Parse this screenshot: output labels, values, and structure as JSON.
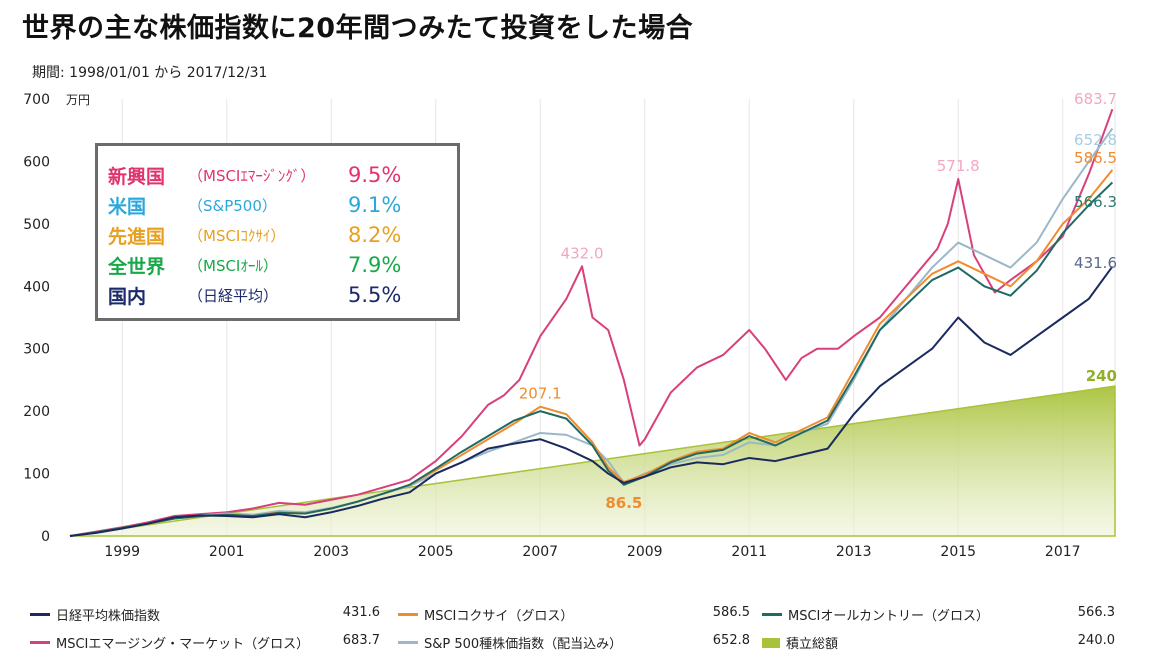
{
  "title": "世界の主な株価指数に20年間つみたて投資をした場合",
  "period": "期間: 1998/01/01 から 2017/12/31",
  "summary_box": [
    {
      "name": "新興国",
      "sub": "（MSCIｴﾏｰｼﾞﾝｸﾞ）",
      "pct": "9.5%",
      "color": "#e0336f"
    },
    {
      "name": "米国",
      "sub": "（S&P500）",
      "pct": "9.1%",
      "color": "#2aa8dc"
    },
    {
      "name": "先進国",
      "sub": "（MSCIｺｸｻｲ）",
      "pct": "8.2%",
      "color": "#e8a020"
    },
    {
      "name": "全世界",
      "sub": "（MSCIｵｰﾙ）",
      "pct": "7.9%",
      "color": "#18a848"
    },
    {
      "name": "国内",
      "sub": "（日経平均）",
      "pct": "5.5%",
      "color": "#1a2a6a"
    }
  ],
  "legend": [
    {
      "label": "日経平均株価指数",
      "value": "431.6",
      "color": "#1b2a5e",
      "type": "line"
    },
    {
      "label": "MSCIコクサイ（グロス）",
      "value": "586.5",
      "color": "#f08c2e",
      "type": "line"
    },
    {
      "label": "MSCIオールカントリー（グロス）",
      "value": "566.3",
      "color": "#1f6b63",
      "type": "line"
    },
    {
      "label": "MSCIエマージング・マーケット（グロス）",
      "value": "683.7",
      "color": "#d83f7c",
      "type": "line"
    },
    {
      "label": "S&P 500種株価指数（配当込み）",
      "value": "652.8",
      "color": "#9ab8c8",
      "type": "line"
    },
    {
      "label": "積立総額",
      "value": "240.0",
      "color": "#a8c23a",
      "type": "area"
    }
  ],
  "chart_data": {
    "type": "line",
    "yunit": "万円",
    "ylim": [
      0,
      700
    ],
    "yticks": [
      0,
      100,
      200,
      300,
      400,
      500,
      600,
      700
    ],
    "xlim": [
      1998,
      2018
    ],
    "xticks": [
      1999,
      2001,
      2003,
      2005,
      2007,
      2009,
      2011,
      2013,
      2015,
      2017
    ],
    "grid": "vertical",
    "series": [
      {
        "name": "積立総額",
        "type": "area",
        "color": "#a8c23a",
        "x": [
          1998,
          2018
        ],
        "values": [
          0,
          240
        ]
      },
      {
        "name": "MSCIエマージング・マーケット（グロス）",
        "color": "#d83f7c",
        "x": [
          1998,
          1998.5,
          1999,
          1999.5,
          2000,
          2000.5,
          2001,
          2001.5,
          2002,
          2002.5,
          2003,
          2003.5,
          2004,
          2004.5,
          2005,
          2005.5,
          2006,
          2006.3,
          2006.6,
          2007,
          2007.5,
          2007.8,
          2008,
          2008.3,
          2008.6,
          2008.9,
          2009,
          2009.5,
          2010,
          2010.5,
          2011,
          2011.3,
          2011.7,
          2012,
          2012.3,
          2012.7,
          2013,
          2013.5,
          2014,
          2014.3,
          2014.6,
          2014.8,
          2015,
          2015.3,
          2015.7,
          2016,
          2016.5,
          2017,
          2017.5,
          2017.95
        ],
        "values": [
          0,
          7,
          14,
          22,
          32,
          35,
          38,
          44,
          53,
          50,
          58,
          66,
          78,
          90,
          120,
          160,
          210,
          225,
          250,
          320,
          380,
          432,
          350,
          330,
          250,
          145,
          155,
          230,
          270,
          290,
          330,
          300,
          250,
          285,
          300,
          300,
          320,
          350,
          400,
          430,
          460,
          500,
          571.8,
          450,
          390,
          410,
          440,
          480,
          580,
          683.7
        ]
      },
      {
        "name": "S&P 500種株価指数（配当込み）",
        "color": "#9ab8c8",
        "x": [
          1998,
          1998.5,
          1999,
          1999.5,
          2000,
          2000.5,
          2001,
          2001.5,
          2002,
          2002.5,
          2003,
          2003.5,
          2004,
          2004.5,
          2005,
          2005.5,
          2006,
          2006.5,
          2007,
          2007.5,
          2008,
          2008.3,
          2008.6,
          2009,
          2009.5,
          2010,
          2010.5,
          2011,
          2011.5,
          2012,
          2012.5,
          2013,
          2013.5,
          2014,
          2014.5,
          2015,
          2015.5,
          2016,
          2016.5,
          2017,
          2017.5,
          2017.95
        ],
        "values": [
          0,
          6,
          13,
          20,
          28,
          33,
          36,
          34,
          40,
          38,
          45,
          55,
          68,
          80,
          100,
          118,
          135,
          150,
          165,
          162,
          145,
          120,
          85,
          100,
          115,
          125,
          130,
          150,
          145,
          165,
          180,
          250,
          330,
          380,
          430,
          470,
          450,
          430,
          470,
          540,
          600,
          652.8
        ]
      },
      {
        "name": "MSCIコクサイ（グロス）",
        "color": "#f08c2e",
        "x": [
          1998,
          1998.5,
          1999,
          1999.5,
          2000,
          2000.5,
          2001,
          2001.5,
          2002,
          2002.5,
          2003,
          2003.5,
          2004,
          2004.5,
          2005,
          2005.5,
          2006,
          2006.5,
          2007,
          2007.5,
          2008,
          2008.3,
          2008.6,
          2009,
          2009.5,
          2010,
          2010.5,
          2011,
          2011.5,
          2012,
          2012.5,
          2013,
          2013.5,
          2014,
          2014.5,
          2015,
          2015.5,
          2016,
          2016.5,
          2017,
          2017.5,
          2017.95
        ],
        "values": [
          0,
          6,
          13,
          20,
          28,
          32,
          34,
          32,
          38,
          36,
          44,
          55,
          68,
          82,
          105,
          130,
          155,
          180,
          207.1,
          195,
          150,
          110,
          86.5,
          98,
          120,
          135,
          140,
          165,
          150,
          170,
          190,
          265,
          340,
          380,
          420,
          440,
          420,
          400,
          440,
          500,
          540,
          586.5
        ]
      },
      {
        "name": "MSCIオールカントリー（グロス）",
        "color": "#1f6b63",
        "x": [
          1998,
          1998.5,
          1999,
          1999.5,
          2000,
          2000.5,
          2001,
          2001.5,
          2002,
          2002.5,
          2003,
          2003.5,
          2004,
          2004.5,
          2005,
          2005.5,
          2006,
          2006.5,
          2007,
          2007.5,
          2008,
          2008.3,
          2008.6,
          2009,
          2009.5,
          2010,
          2010.5,
          2011,
          2011.5,
          2012,
          2012.5,
          2013,
          2013.5,
          2014,
          2014.5,
          2015,
          2015.5,
          2016,
          2016.5,
          2017,
          2017.5,
          2017.95
        ],
        "values": [
          0,
          6,
          13,
          20,
          28,
          32,
          34,
          32,
          37,
          36,
          44,
          55,
          68,
          82,
          108,
          135,
          160,
          185,
          200,
          188,
          145,
          105,
          82,
          95,
          118,
          132,
          138,
          160,
          145,
          165,
          185,
          255,
          330,
          370,
          410,
          430,
          400,
          385,
          425,
          485,
          530,
          566.3
        ]
      },
      {
        "name": "日経平均株価指数",
        "color": "#1b2a5e",
        "x": [
          1998,
          1998.5,
          1999,
          1999.5,
          2000,
          2000.5,
          2001,
          2001.5,
          2002,
          2002.5,
          2003,
          2003.5,
          2004,
          2004.5,
          2005,
          2005.5,
          2006,
          2006.5,
          2007,
          2007.5,
          2008,
          2008.3,
          2008.6,
          2009,
          2009.5,
          2010,
          2010.5,
          2011,
          2011.5,
          2012,
          2012.5,
          2013,
          2013.5,
          2014,
          2014.5,
          2015,
          2015.5,
          2016,
          2016.5,
          2017,
          2017.5,
          2017.95
        ],
        "values": [
          0,
          5,
          12,
          20,
          30,
          33,
          32,
          30,
          35,
          30,
          38,
          48,
          60,
          70,
          100,
          118,
          140,
          148,
          155,
          140,
          120,
          100,
          85,
          95,
          110,
          118,
          115,
          125,
          120,
          130,
          140,
          195,
          240,
          270,
          300,
          350,
          310,
          290,
          320,
          350,
          380,
          431.6
        ]
      }
    ],
    "annotations": [
      {
        "text": "432.0",
        "x": 2007.8,
        "y": 432,
        "color": "#f3a6c5"
      },
      {
        "text": "207.1",
        "x": 2007.0,
        "y": 207.1,
        "color": "#f08c2e"
      },
      {
        "text": "86.5",
        "x": 2008.6,
        "y": 86.5,
        "color": "#f08c2e"
      },
      {
        "text": "571.8",
        "x": 2015.0,
        "y": 571.8,
        "color": "#f3a6c5"
      },
      {
        "text": "683.7",
        "x": 2017.95,
        "y": 683.7,
        "color": "#f3a6c5"
      },
      {
        "text": "652.8",
        "x": 2017.95,
        "y": 652.8,
        "color": "#a8cde0"
      },
      {
        "text": "586.5",
        "x": 2017.95,
        "y": 586.5,
        "color": "#f08c2e"
      },
      {
        "text": "566.3",
        "x": 2017.95,
        "y": 566.3,
        "color": "#2a7a6e"
      },
      {
        "text": "431.6",
        "x": 2017.95,
        "y": 431.6,
        "color": "#5a6a8a"
      },
      {
        "text": "240",
        "x": 2017.95,
        "y": 240,
        "color": "#8fb028"
      }
    ]
  }
}
